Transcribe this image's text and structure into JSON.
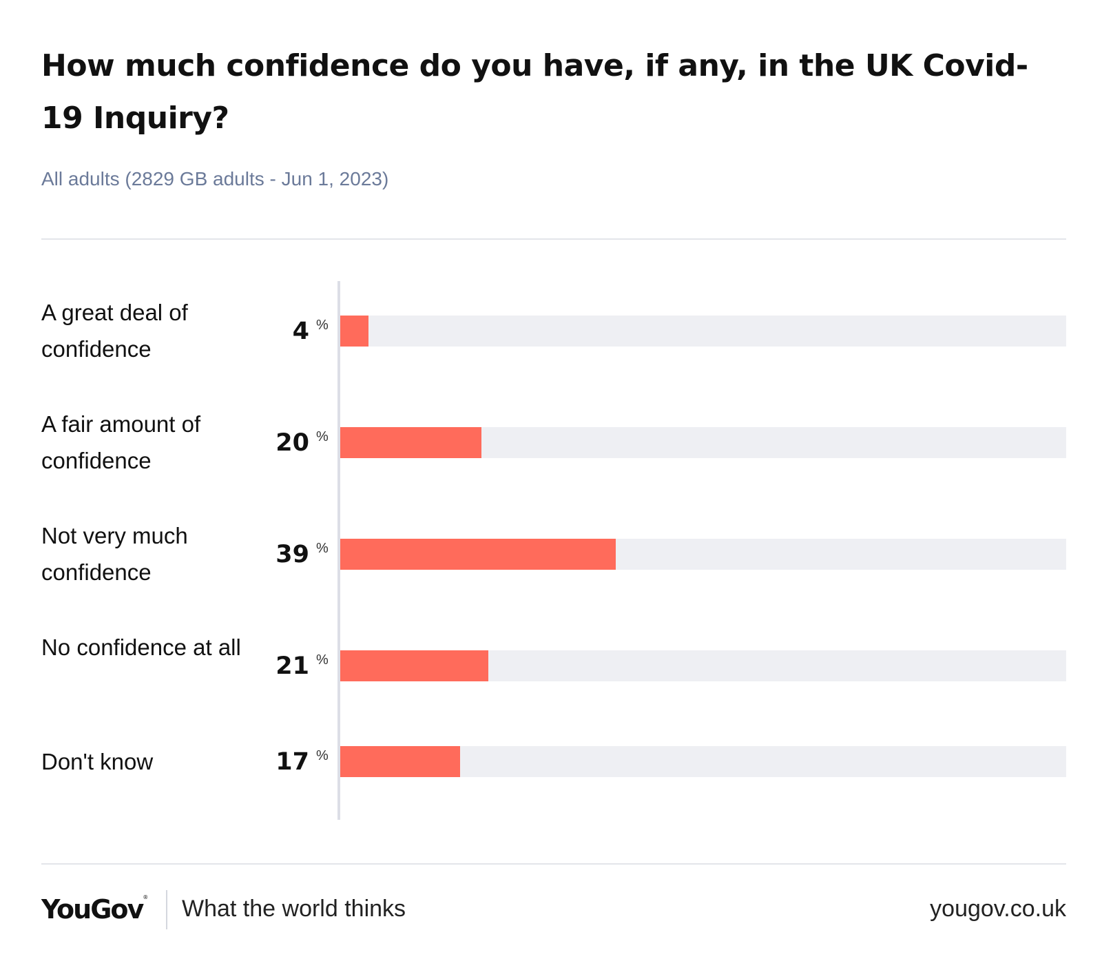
{
  "header": {
    "title": "How much confidence do you have, if any, in the UK Covid-19 Inquiry?",
    "subtitle": "All adults (2829 GB adults - Jun 1, 2023)"
  },
  "chart_data": {
    "type": "bar",
    "orientation": "horizontal",
    "title": "How much confidence do you have, if any, in the UK Covid-19 Inquiry?",
    "subtitle": "All adults (2829 GB adults - Jun 1, 2023)",
    "xlim": [
      0,
      100
    ],
    "unit": "%",
    "grid": false,
    "categories": [
      "A great deal of confidence",
      "A fair amount of confidence",
      "Not very much confidence",
      "No confidence at all",
      "Don't know"
    ],
    "values": [
      4,
      20,
      39,
      21,
      17
    ],
    "value_labels": [
      "4",
      "20",
      "39",
      "21",
      "17"
    ],
    "bar_color": "#ff6b5b",
    "track_color": "#eeeff3"
  },
  "footer": {
    "logo": "YouGov",
    "logo_mark": "®",
    "tagline": "What the world thinks",
    "url": "yougov.co.uk"
  }
}
